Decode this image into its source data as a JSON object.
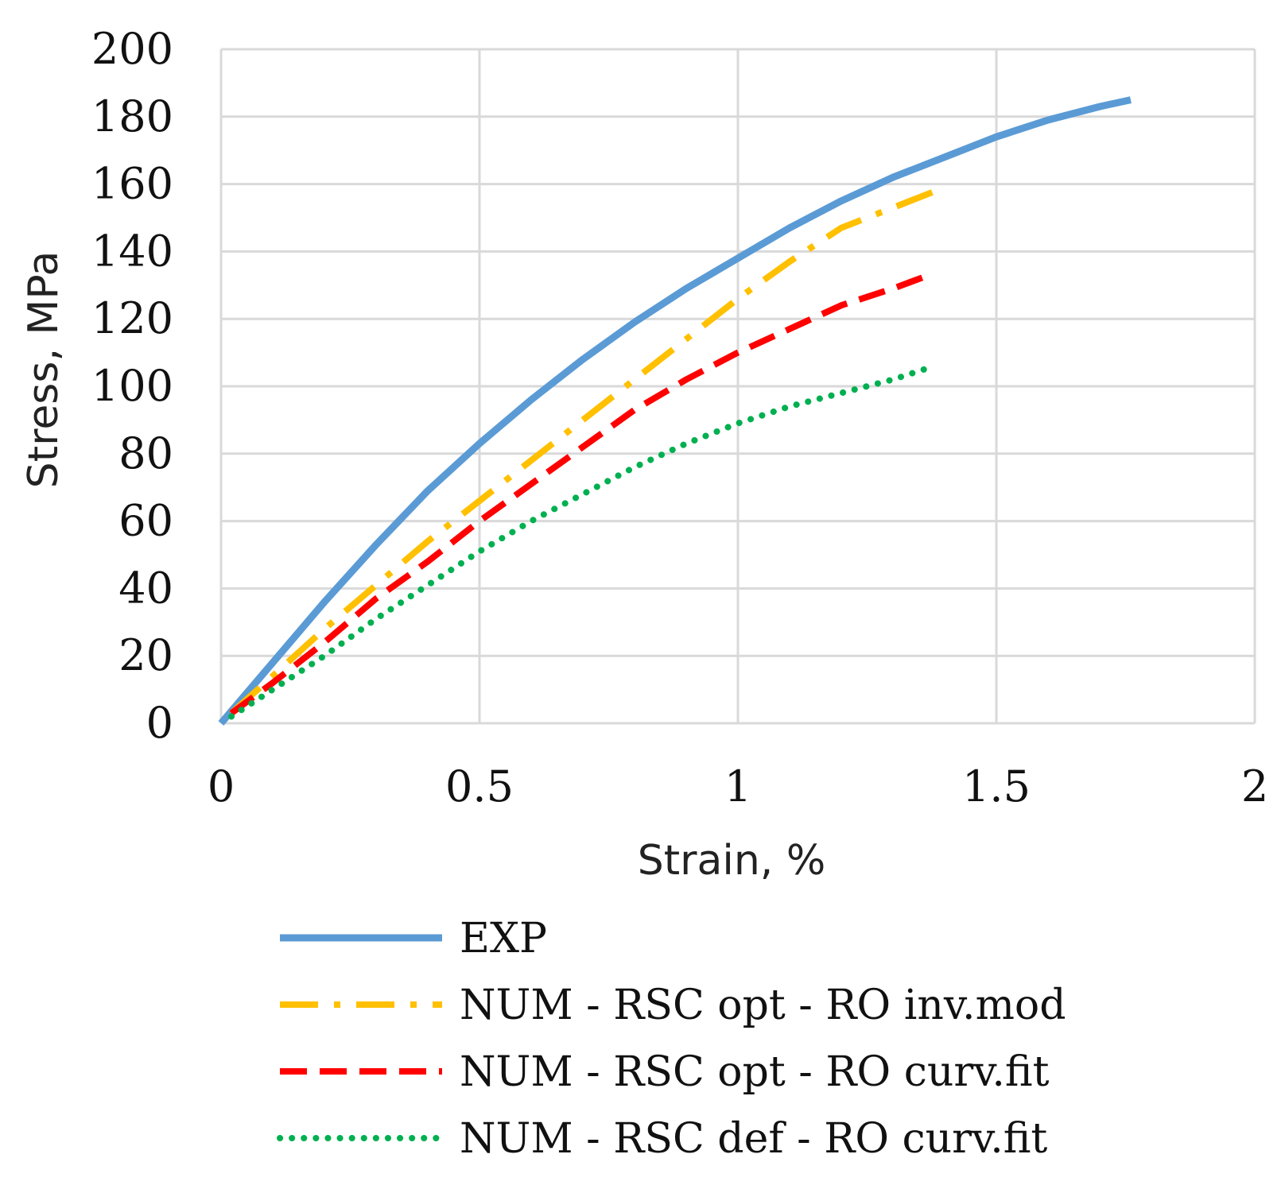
{
  "chart_data": {
    "type": "line",
    "title": "",
    "xlabel": "Strain, %",
    "ylabel": "Stress, MPa",
    "xlim": [
      0,
      2
    ],
    "ylim": [
      0,
      200
    ],
    "xticks": [
      0,
      0.5,
      1,
      1.5,
      2
    ],
    "xtick_labels": [
      "0",
      "0.5",
      "1",
      "1.5",
      "2"
    ],
    "yticks": [
      0,
      20,
      40,
      60,
      80,
      100,
      120,
      140,
      160,
      180,
      200
    ],
    "ytick_labels": [
      "0",
      "20",
      "40",
      "60",
      "80",
      "100",
      "120",
      "140",
      "160",
      "180",
      "200"
    ],
    "grid": true,
    "legend_position": "bottom",
    "series": [
      {
        "name": "EXP",
        "color": "#5b9bd5",
        "style": "solid",
        "x": [
          0,
          0.05,
          0.1,
          0.2,
          0.3,
          0.4,
          0.5,
          0.6,
          0.7,
          0.8,
          0.9,
          1.0,
          1.1,
          1.2,
          1.3,
          1.4,
          1.5,
          1.6,
          1.7,
          1.76
        ],
        "y": [
          0,
          9,
          18,
          36,
          53,
          69,
          83,
          96,
          108,
          119,
          129,
          138,
          147,
          155,
          162,
          168,
          174,
          179,
          183,
          185
        ]
      },
      {
        "name": "NUM - RSC opt - RO inv.mod",
        "color": "#ffc000",
        "style": "dashdot",
        "x": [
          0.02,
          0.1,
          0.2,
          0.3,
          0.4,
          0.5,
          0.6,
          0.7,
          0.8,
          0.9,
          1.0,
          1.1,
          1.2,
          1.3,
          1.4
        ],
        "y": [
          3,
          14,
          28,
          41,
          54,
          66,
          78,
          90,
          102,
          114,
          126,
          137,
          147,
          153,
          159
        ]
      },
      {
        "name": "NUM - RSC opt - RO curv.fit",
        "color": "#ff0000",
        "style": "dashed",
        "x": [
          0.02,
          0.1,
          0.2,
          0.3,
          0.4,
          0.5,
          0.6,
          0.7,
          0.8,
          0.9,
          1.0,
          1.1,
          1.2,
          1.3,
          1.37
        ],
        "y": [
          3,
          12,
          24,
          37,
          48,
          60,
          71,
          82,
          93,
          102,
          110,
          117,
          124,
          129,
          133
        ]
      },
      {
        "name": "NUM - RSC def - RO curv.fit",
        "color": "#00b050",
        "style": "dotted",
        "x": [
          0.02,
          0.1,
          0.2,
          0.3,
          0.4,
          0.5,
          0.6,
          0.7,
          0.8,
          0.9,
          1.0,
          1.1,
          1.2,
          1.3,
          1.36
        ],
        "y": [
          2,
          10,
          20,
          31,
          41,
          51,
          60,
          68,
          76,
          83,
          89,
          94,
          98,
          102,
          105
        ]
      }
    ]
  }
}
